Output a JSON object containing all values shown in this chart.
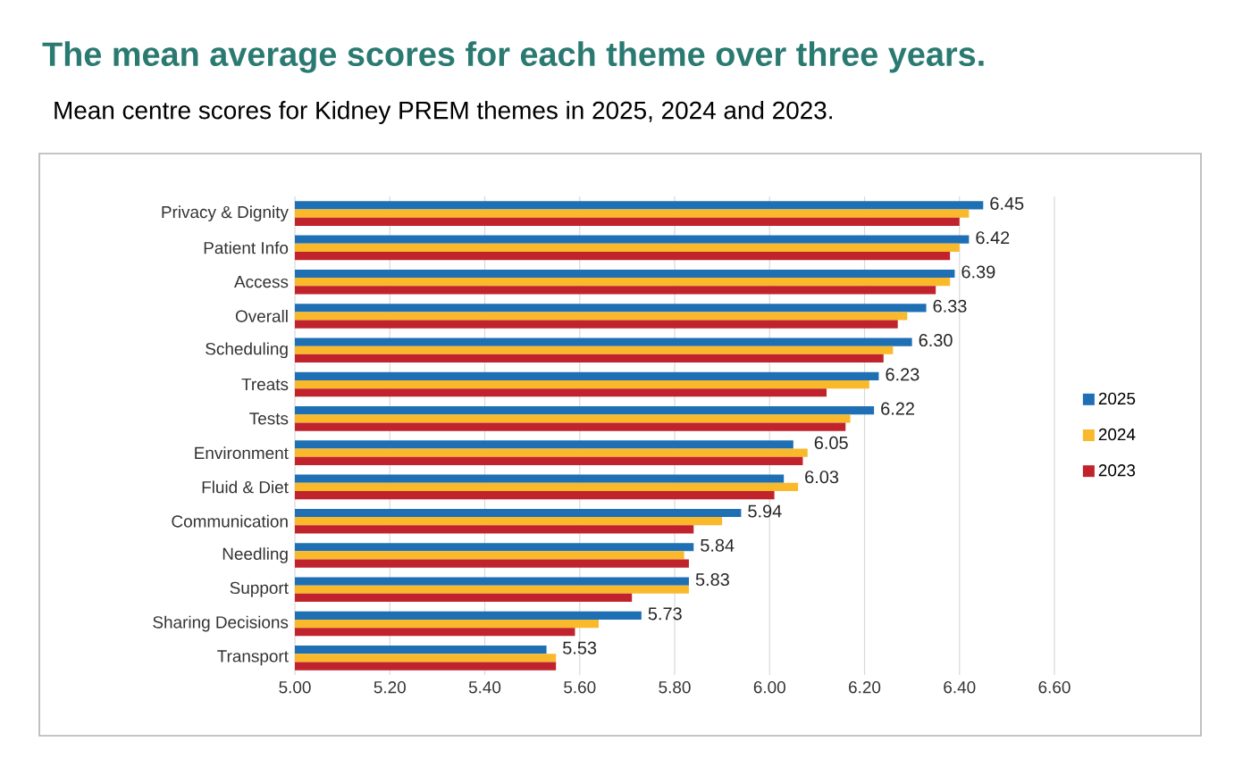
{
  "chart_data": {
    "type": "bar",
    "orientation": "horizontal",
    "title": "The mean average scores for each theme over three years.",
    "subtitle": "Mean centre scores for Kidney PREM themes in 2025, 2024 and 2023.",
    "categories": [
      "Privacy & Dignity",
      "Patient Info",
      "Access",
      "Overall",
      "Scheduling",
      "Treats",
      "Tests",
      "Environment",
      "Fluid & Diet",
      "Communication",
      "Needling",
      "Support",
      "Sharing Decisions",
      "Transport"
    ],
    "series": [
      {
        "name": "2025",
        "color": "#1f6fb5",
        "values": [
          6.45,
          6.42,
          6.39,
          6.33,
          6.3,
          6.23,
          6.22,
          6.05,
          6.03,
          5.94,
          5.84,
          5.83,
          5.73,
          5.53
        ],
        "value_labels": [
          "6.45",
          "6.42",
          "6.39",
          "6.33",
          "6.30",
          "6.23",
          "6.22",
          "6.05",
          "6.03",
          "5.94",
          "5.84",
          "5.83",
          "5.73",
          "5.53"
        ]
      },
      {
        "name": "2024",
        "color": "#f9b92a",
        "values": [
          6.42,
          6.4,
          6.38,
          6.29,
          6.26,
          6.21,
          6.17,
          6.08,
          6.06,
          5.9,
          5.82,
          5.83,
          5.64,
          5.55
        ]
      },
      {
        "name": "2023",
        "color": "#c0232c",
        "values": [
          6.4,
          6.38,
          6.35,
          6.27,
          6.24,
          6.12,
          6.16,
          6.07,
          6.01,
          5.84,
          5.83,
          5.71,
          5.59,
          5.55
        ]
      }
    ],
    "xlim": [
      5.0,
      6.6
    ],
    "xticks": [
      {
        "value": 5.0,
        "label": "5.00"
      },
      {
        "value": 5.2,
        "label": "5.20"
      },
      {
        "value": 5.4,
        "label": "5.40"
      },
      {
        "value": 5.6,
        "label": "5.60"
      },
      {
        "value": 5.8,
        "label": "5.80"
      },
      {
        "value": 6.0,
        "label": "6.00"
      },
      {
        "value": 6.2,
        "label": "6.20"
      },
      {
        "value": 6.4,
        "label": "6.40"
      },
      {
        "value": 6.6,
        "label": "6.60"
      }
    ],
    "grid": "x",
    "legend": "right"
  }
}
